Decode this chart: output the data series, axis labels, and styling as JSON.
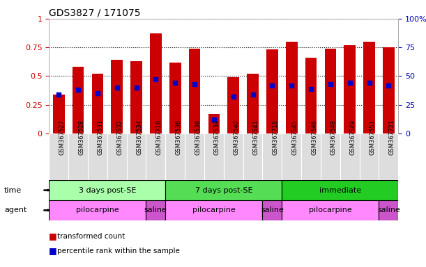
{
  "title": "GDS3827 / 171075",
  "samples": [
    "GSM367527",
    "GSM367528",
    "GSM367531",
    "GSM367532",
    "GSM367534",
    "GSM367718",
    "GSM367536",
    "GSM367538",
    "GSM367539",
    "GSM367540",
    "GSM367541",
    "GSM367719",
    "GSM367545",
    "GSM367546",
    "GSM367548",
    "GSM367549",
    "GSM367551",
    "GSM367721"
  ],
  "bar_values": [
    0.34,
    0.58,
    0.52,
    0.64,
    0.63,
    0.87,
    0.62,
    0.74,
    0.17,
    0.49,
    0.52,
    0.73,
    0.8,
    0.66,
    0.74,
    0.77,
    0.8,
    0.75
  ],
  "dot_values": [
    0.34,
    0.38,
    0.35,
    0.4,
    0.4,
    0.47,
    0.44,
    0.43,
    0.12,
    0.32,
    0.34,
    0.42,
    0.42,
    0.39,
    0.43,
    0.44,
    0.44,
    0.42
  ],
  "bar_color": "#CC0000",
  "dot_color": "#0000CC",
  "ylim": [
    0,
    1.0
  ],
  "yticks": [
    0,
    0.25,
    0.5,
    0.75,
    1.0
  ],
  "ytick_labels": [
    "0",
    "0.25",
    "0.5",
    "0.75",
    "1"
  ],
  "y2ticks": [
    0,
    25,
    50,
    75,
    100
  ],
  "y2tick_labels": [
    "0",
    "25",
    "50",
    "75",
    "100%"
  ],
  "time_groups": [
    {
      "label": "3 days post-SE",
      "start": 0,
      "end": 5,
      "color": "#AAFFAA"
    },
    {
      "label": "7 days post-SE",
      "start": 6,
      "end": 11,
      "color": "#55DD55"
    },
    {
      "label": "immediate",
      "start": 12,
      "end": 17,
      "color": "#22CC22"
    }
  ],
  "agent_groups": [
    {
      "label": "pilocarpine",
      "start": 0,
      "end": 4,
      "color": "#FF88FF"
    },
    {
      "label": "saline",
      "start": 5,
      "end": 5,
      "color": "#CC55CC"
    },
    {
      "label": "pilocarpine",
      "start": 6,
      "end": 10,
      "color": "#FF88FF"
    },
    {
      "label": "saline",
      "start": 11,
      "end": 11,
      "color": "#CC55CC"
    },
    {
      "label": "pilocarpine",
      "start": 12,
      "end": 16,
      "color": "#FF88FF"
    },
    {
      "label": "saline",
      "start": 17,
      "end": 17,
      "color": "#CC55CC"
    }
  ],
  "legend_items": [
    {
      "label": "transformed count",
      "color": "#CC0000"
    },
    {
      "label": "percentile rank within the sample",
      "color": "#0000CC"
    }
  ],
  "background_color": "#FFFFFF",
  "tick_label_color_left": "#CC0000",
  "tick_label_color_right": "#0000BB",
  "xticklabel_bg": "#DDDDDD"
}
